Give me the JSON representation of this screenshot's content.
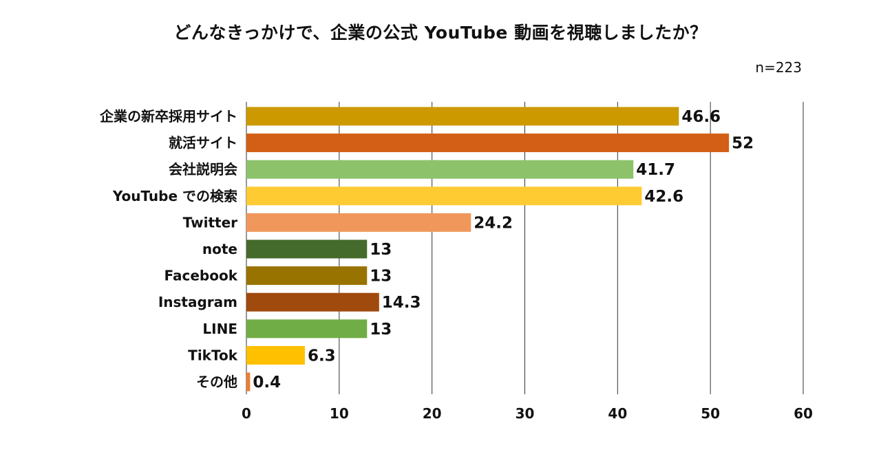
{
  "title": "どんなきっかけで、企業の公式 YouTube 動画を視聴しましたか？",
  "sample_size": "n=223",
  "chart_data": {
    "type": "bar",
    "orientation": "horizontal",
    "categories": [
      "企業の新卒採用サイト",
      "就活サイト",
      "会社説明会",
      "YouTube での検索",
      "Twitter",
      "note",
      "Facebook",
      "Instagram",
      "LINE",
      "TikTok",
      "その他"
    ],
    "values": [
      46.6,
      52,
      41.7,
      42.6,
      24.2,
      13,
      13,
      14.3,
      13,
      6.3,
      0.4
    ],
    "value_labels": [
      "46.6",
      "52",
      "41.7",
      "42.6",
      "24.2",
      "13",
      "13",
      "14.3",
      "13",
      "6.3",
      "0.4"
    ],
    "colors": [
      "#CC9900",
      "#D35F16",
      "#8DC26B",
      "#FFCB33",
      "#F0985C",
      "#456B2C",
      "#997300",
      "#A04A0E",
      "#70AD47",
      "#FFC000",
      "#ED7D31"
    ],
    "xlim": [
      0,
      60
    ],
    "x_ticks": [
      "0",
      "10",
      "20",
      "30",
      "40",
      "50",
      "60"
    ],
    "grid": true,
    "xlabel": "",
    "ylabel": ""
  }
}
